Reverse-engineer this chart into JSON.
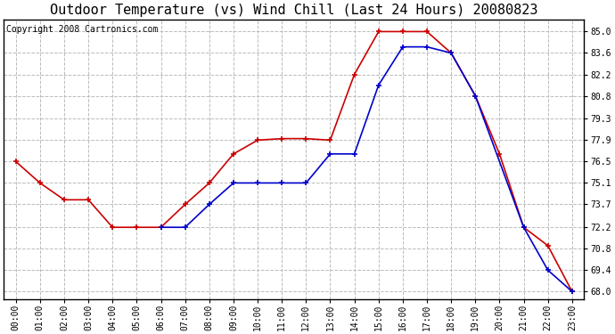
{
  "title": "Outdoor Temperature (vs) Wind Chill (Last 24 Hours) 20080823",
  "copyright": "Copyright 2008 Cartronics.com",
  "hours": [
    "00:00",
    "01:00",
    "02:00",
    "03:00",
    "04:00",
    "05:00",
    "06:00",
    "07:00",
    "08:00",
    "09:00",
    "10:00",
    "11:00",
    "12:00",
    "13:00",
    "14:00",
    "15:00",
    "16:00",
    "17:00",
    "18:00",
    "19:00",
    "20:00",
    "21:00",
    "22:00",
    "23:00"
  ],
  "temp": [
    76.5,
    75.1,
    74.0,
    74.0,
    72.2,
    72.2,
    72.2,
    73.7,
    75.1,
    77.0,
    77.9,
    78.0,
    78.0,
    77.9,
    82.2,
    85.0,
    85.0,
    85.0,
    83.6,
    80.8,
    77.0,
    72.2,
    71.0,
    68.0
  ],
  "windchill": [
    null,
    null,
    null,
    null,
    null,
    null,
    72.2,
    72.2,
    73.7,
    75.1,
    75.1,
    75.1,
    75.1,
    77.0,
    77.0,
    81.5,
    84.0,
    84.0,
    83.6,
    80.8,
    null,
    72.2,
    69.4,
    68.0
  ],
  "temp_color": "#cc0000",
  "windchill_color": "#0000cc",
  "bg_color": "#ffffff",
  "grid_color": "#bbbbbb",
  "ylim": [
    67.5,
    85.8
  ],
  "yticks": [
    68.0,
    69.4,
    70.8,
    72.2,
    73.7,
    75.1,
    76.5,
    77.9,
    79.3,
    80.8,
    82.2,
    83.6,
    85.0
  ],
  "title_fontsize": 11,
  "copyright_fontsize": 7,
  "tick_fontsize": 7
}
